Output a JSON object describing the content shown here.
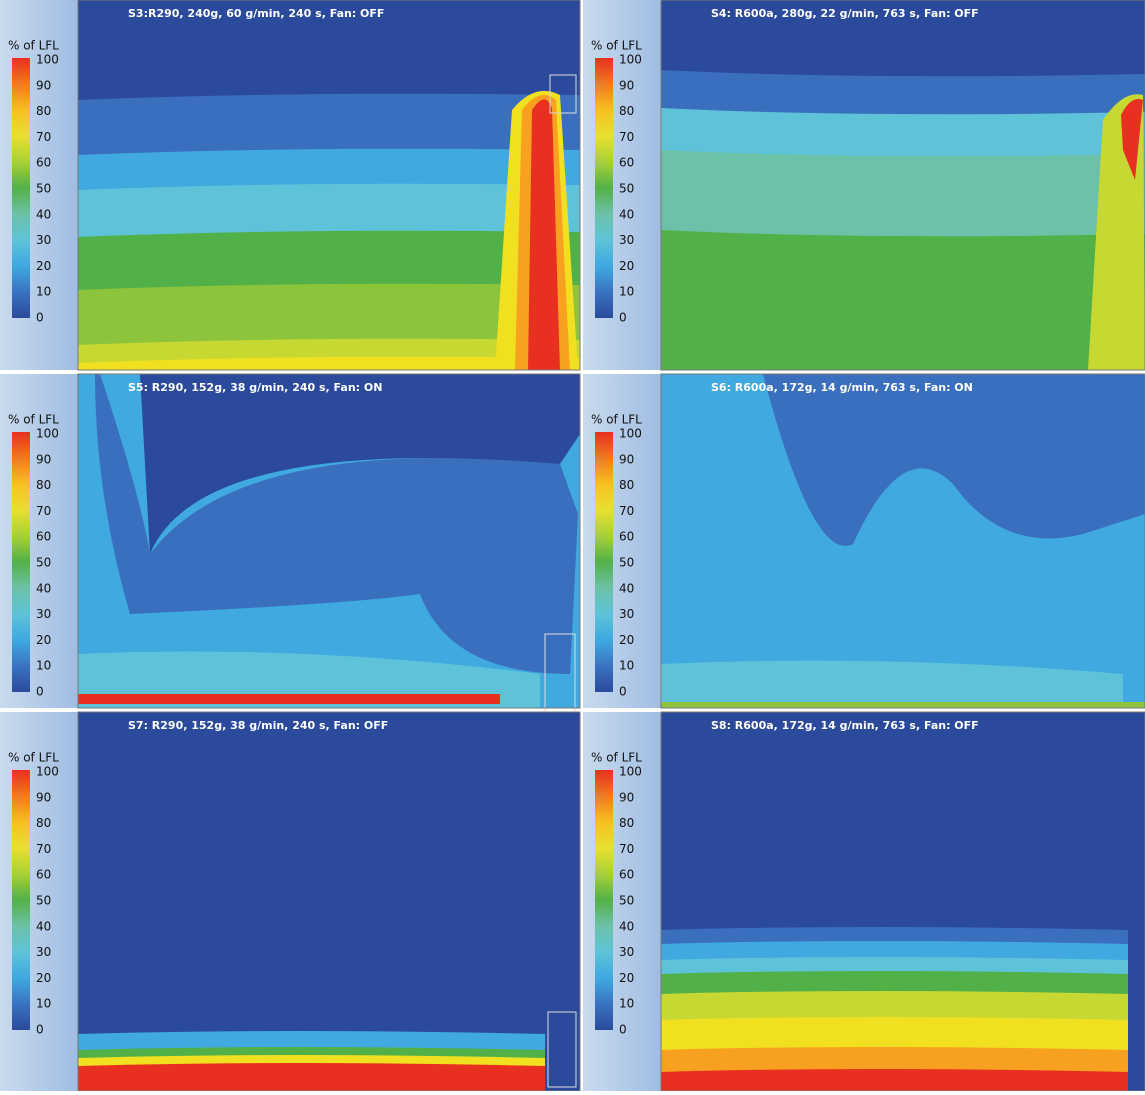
{
  "legend": {
    "title": "% of LFL",
    "ticks": [
      100,
      90,
      80,
      70,
      60,
      50,
      40,
      30,
      20,
      10,
      0
    ]
  },
  "panels": [
    {
      "title": "S3:R290, 240g, 60 g/min, 240 s, Fan: OFF"
    },
    {
      "title": "S4: R600a, 280g, 22 g/min, 763 s, Fan: OFF"
    },
    {
      "title": "S5: R290, 152g, 38 g/min, 240 s, Fan: ON"
    },
    {
      "title": "S6: R600a, 172g, 14 g/min, 763 s, Fan: ON"
    },
    {
      "title": "S7: R290, 152g, 38 g/min, 240 s, Fan: OFF"
    },
    {
      "title": "S8: R600a, 172g, 14 g/min, 763 s, Fan: OFF"
    }
  ]
}
